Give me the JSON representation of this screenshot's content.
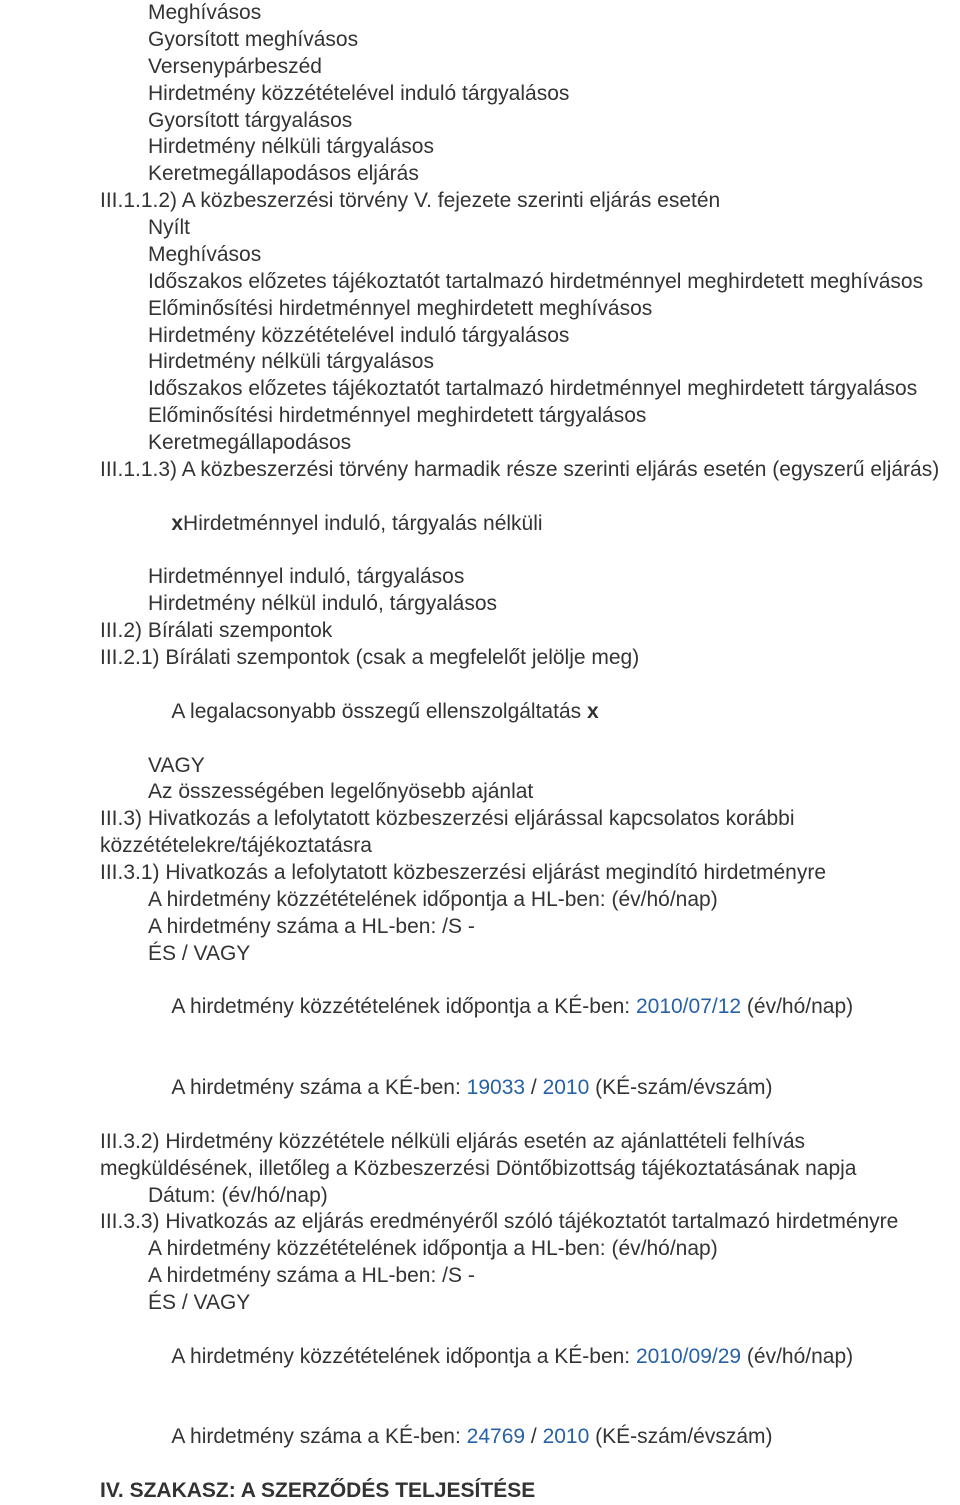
{
  "lines": {
    "l1": "Meghívásos",
    "l2": "Gyorsított meghívásos",
    "l3": "Versenypárbeszéd",
    "l4": "Hirdetmény közzétételével induló tárgyalásos",
    "l5": "Gyorsított tárgyalásos",
    "l6": "Hirdetmény nélküli tárgyalásos",
    "l7": "Keretmegállapodásos eljárás",
    "l8": "III.1.1.2) A közbeszerzési törvény V. fejezete szerinti eljárás esetén",
    "l9": "Nyílt",
    "l10": "Meghívásos",
    "l11": "Időszakos előzetes tájékoztatót tartalmazó hirdetménnyel meghirdetett meghívásos",
    "l12": "Előminősítési hirdetménnyel meghirdetett meghívásos",
    "l13": "Hirdetmény közzétételével induló tárgyalásos",
    "l14": "Hirdetmény nélküli tárgyalásos",
    "l15": "Időszakos előzetes tájékoztatót tartalmazó hirdetménnyel meghirdetett tárgyalásos",
    "l16": "Előminősítési hirdetménnyel meghirdetett tárgyalásos",
    "l17": "Keretmegállapodásos",
    "l18": "III.1.1.3) A közbeszerzési törvény harmadik része szerinti eljárás esetén (egyszerű eljárás)",
    "l19a": "x",
    "l19b": "Hirdetménnyel induló, tárgyalás nélküli",
    "l20": "Hirdetménnyel induló, tárgyalásos",
    "l21": "Hirdetmény nélkül induló, tárgyalásos",
    "l22": "III.2) Bírálati szempontok",
    "l23": "III.2.1) Bírálati szempontok (csak a megfelelőt jelölje meg)",
    "l24a": "A legalacsonyabb összegű ellenszolgáltatás ",
    "l24b": "x",
    "l25": "VAGY",
    "l26": "Az összességében legelőnyösebb ajánlat",
    "l27": "III.3) Hivatkozás a lefolytatott közbeszerzési eljárással kapcsolatos korábbi közzétételekre/tájékoztatásra",
    "l28": "III.3.1) Hivatkozás a lefolytatott közbeszerzési eljárást megindító hirdetményre",
    "l29": "A hirdetmény közzétételének időpontja a HL-ben: (év/hó/nap)",
    "l30": "A hirdetmény száma a HL-ben: /S -",
    "l31": "ÉS / VAGY",
    "l32a": "A hirdetmény közzétételének időpontja a KÉ-ben: ",
    "l32b": "2010/07/12",
    "l32c": " (év/hó/nap)",
    "l33a": "A hirdetmény száma a KÉ-ben: ",
    "l33b": "19033",
    "l33c": " / ",
    "l33d": "2010",
    "l33e": " (KÉ-szám/évszám)",
    "l34": "III.3.2) Hirdetmény közzététele nélküli eljárás esetén az ajánlattételi felhívás megküldésének, illetőleg a Közbeszerzési Döntőbizottság tájékoztatásának napja",
    "l35": "Dátum: (év/hó/nap)",
    "l36": "III.3.3) Hivatkozás az eljárás eredményéről szóló tájékoztatót tartalmazó hirdetményre",
    "l37": "A hirdetmény közzétételének időpontja a HL-ben: (év/hó/nap)",
    "l38": "A hirdetmény száma a HL-ben: /S -",
    "l39": "ÉS / VAGY",
    "l40a": "A hirdetmény közzétételének időpontja a KÉ-ben: ",
    "l40b": "2010/09/29",
    "l40c": " (év/hó/nap)",
    "l41a": "A hirdetmény száma a KÉ-ben: ",
    "l41b": "24769",
    "l41c": " / ",
    "l41d": "2010",
    "l41e": " (KÉ-szám/évszám)",
    "l42": "IV. SZAKASZ: A SZERZŐDÉS TELJESÍTÉSE"
  }
}
